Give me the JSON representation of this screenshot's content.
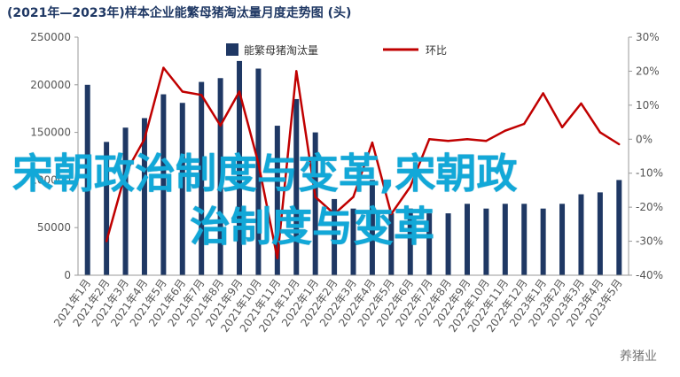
{
  "title": "(2021年—2023年)样本企业能繁母猪淘汰量月度走势图 (头)",
  "overlay_text_1": "宋朝政治制度与变革,宋朝政",
  "overlay_text_2": "治制度与变革",
  "watermark": "养猪业",
  "chart_data": {
    "type": "bar",
    "categories": [
      "2021年1月",
      "2021年2月",
      "2021年3月",
      "2021年4月",
      "2021年5月",
      "2021年6月",
      "2021年7月",
      "2021年8月",
      "2021年9月",
      "2021年10月",
      "2021年11月",
      "2021年12月",
      "2022年1月",
      "2022年2月",
      "2022年3月",
      "2022年4月",
      "2022年5月",
      "2022年6月",
      "2022年7月",
      "2022年8月",
      "2022年9月",
      "2022年10月",
      "2022年11月",
      "2022年12月",
      "2023年1月",
      "2023年2月",
      "2023年3月",
      "2023年4月",
      "2023年5月"
    ],
    "series": [
      {
        "name": "能繁母猪淘汰量",
        "axis": "left",
        "type": "bar",
        "color": "#1f3864",
        "values": [
          200000,
          140000,
          155000,
          165000,
          190000,
          181000,
          203000,
          207000,
          225000,
          217000,
          157000,
          185000,
          150000,
          80000,
          70000,
          100000,
          65000,
          70000,
          65000,
          65000,
          75000,
          70000,
          75000,
          75000,
          70000,
          75000,
          85000,
          87000,
          100000
        ]
      },
      {
        "name": "环比",
        "axis": "right",
        "type": "line",
        "color": "#c00000",
        "values": [
          null,
          -30,
          -10,
          0,
          21,
          14,
          13,
          4,
          14,
          -7,
          -35,
          20,
          -17,
          -22,
          -17,
          -1,
          -22,
          -14,
          0,
          -0.5,
          0,
          -0.5,
          2.5,
          4.5,
          13.5,
          3.5,
          10.5,
          2,
          -1.5
        ]
      }
    ],
    "ylim_left": [
      0,
      250000
    ],
    "yticks_left": [
      "0",
      "50000",
      "100000",
      "150000",
      "200000",
      "250000"
    ],
    "ylim_right": [
      -40,
      30
    ],
    "yticks_right": [
      "-40%",
      "-30%",
      "-20%",
      "-10%",
      "0%",
      "10%",
      "20%",
      "30%"
    ],
    "legend_position": "top"
  }
}
